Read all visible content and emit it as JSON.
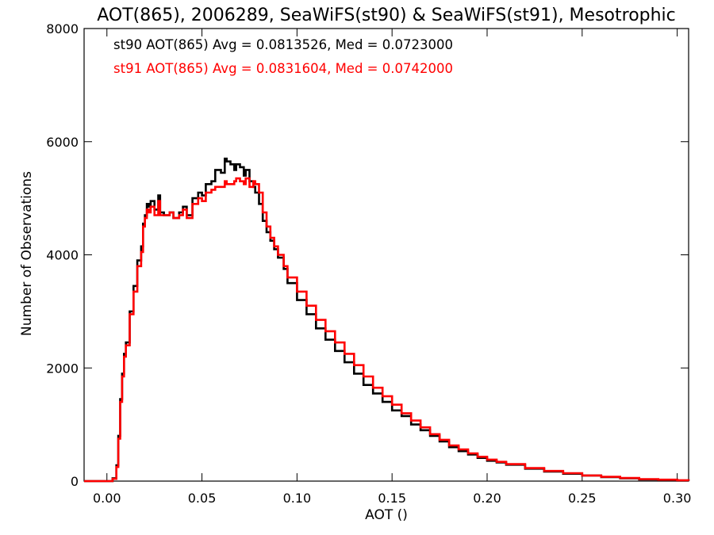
{
  "chart_data": {
    "type": "line",
    "step": true,
    "title": "AOT(865), 2006289, SeaWiFS(st90) & SeaWiFS(st91), Mesotrophic",
    "xlabel": "AOT ()",
    "ylabel": "Number of Observations",
    "xlim": [
      -0.012,
      0.306
    ],
    "ylim": [
      0,
      8000
    ],
    "xticks": [
      0.0,
      0.05,
      0.1,
      0.15,
      0.2,
      0.25,
      0.3
    ],
    "xtick_labels": [
      "0.00",
      "0.05",
      "0.10",
      "0.15",
      "0.20",
      "0.25",
      "0.30"
    ],
    "yticks": [
      0,
      2000,
      4000,
      6000,
      8000
    ],
    "ytick_labels": [
      "0",
      "2000",
      "4000",
      "6000",
      "8000"
    ],
    "grid": false,
    "legend_position": "top-left",
    "series": [
      {
        "name": "st90",
        "color": "#000000",
        "annotation": "st90 AOT(865) Avg = 0.0813526, Med = 0.0723000",
        "x": [
          -0.012,
          0.0,
          0.003,
          0.005,
          0.006,
          0.007,
          0.008,
          0.009,
          0.01,
          0.012,
          0.014,
          0.016,
          0.018,
          0.019,
          0.02,
          0.021,
          0.022,
          0.023,
          0.025,
          0.027,
          0.028,
          0.03,
          0.033,
          0.035,
          0.038,
          0.04,
          0.042,
          0.045,
          0.048,
          0.05,
          0.052,
          0.055,
          0.057,
          0.06,
          0.062,
          0.063,
          0.065,
          0.067,
          0.068,
          0.07,
          0.072,
          0.073,
          0.075,
          0.077,
          0.078,
          0.08,
          0.082,
          0.084,
          0.086,
          0.088,
          0.09,
          0.093,
          0.095,
          0.1,
          0.105,
          0.11,
          0.115,
          0.12,
          0.125,
          0.13,
          0.135,
          0.14,
          0.145,
          0.15,
          0.155,
          0.16,
          0.165,
          0.17,
          0.175,
          0.18,
          0.185,
          0.19,
          0.195,
          0.2,
          0.205,
          0.21,
          0.22,
          0.23,
          0.24,
          0.25,
          0.26,
          0.27,
          0.28,
          0.29,
          0.3,
          0.306
        ],
        "y": [
          0,
          0,
          50,
          280,
          800,
          1450,
          1900,
          2250,
          2450,
          3000,
          3450,
          3900,
          4150,
          4550,
          4700,
          4900,
          4850,
          4950,
          4800,
          5050,
          4750,
          4700,
          4750,
          4650,
          4750,
          4850,
          4700,
          5000,
          5100,
          5050,
          5250,
          5300,
          5500,
          5450,
          5700,
          5650,
          5600,
          5500,
          5600,
          5550,
          5400,
          5500,
          5300,
          5200,
          5100,
          4900,
          4600,
          4400,
          4250,
          4100,
          3950,
          3750,
          3500,
          3200,
          2950,
          2700,
          2500,
          2300,
          2100,
          1900,
          1700,
          1550,
          1400,
          1250,
          1150,
          1000,
          900,
          800,
          700,
          600,
          530,
          470,
          410,
          360,
          330,
          290,
          220,
          170,
          130,
          100,
          70,
          50,
          30,
          20,
          10,
          5
        ]
      },
      {
        "name": "st91",
        "color": "#ff0000",
        "annotation": "st91 AOT(865) Avg = 0.0831604, Med = 0.0742000",
        "x": [
          -0.012,
          0.0,
          0.003,
          0.005,
          0.006,
          0.007,
          0.008,
          0.009,
          0.01,
          0.012,
          0.014,
          0.016,
          0.018,
          0.019,
          0.02,
          0.021,
          0.022,
          0.023,
          0.025,
          0.027,
          0.028,
          0.03,
          0.033,
          0.035,
          0.038,
          0.04,
          0.042,
          0.045,
          0.048,
          0.05,
          0.052,
          0.055,
          0.057,
          0.06,
          0.062,
          0.063,
          0.065,
          0.067,
          0.068,
          0.07,
          0.072,
          0.073,
          0.075,
          0.077,
          0.078,
          0.08,
          0.082,
          0.084,
          0.086,
          0.088,
          0.09,
          0.093,
          0.095,
          0.1,
          0.105,
          0.11,
          0.115,
          0.12,
          0.125,
          0.13,
          0.135,
          0.14,
          0.145,
          0.15,
          0.155,
          0.16,
          0.165,
          0.17,
          0.175,
          0.18,
          0.185,
          0.19,
          0.195,
          0.2,
          0.205,
          0.21,
          0.22,
          0.23,
          0.24,
          0.25,
          0.26,
          0.27,
          0.28,
          0.29,
          0.3,
          0.306
        ],
        "y": [
          0,
          0,
          40,
          250,
          750,
          1400,
          1850,
          2200,
          2400,
          2950,
          3350,
          3800,
          4050,
          4500,
          4650,
          4800,
          4750,
          4850,
          4700,
          4950,
          4700,
          4700,
          4750,
          4650,
          4700,
          4800,
          4650,
          4900,
          5000,
          4950,
          5100,
          5150,
          5200,
          5200,
          5300,
          5250,
          5250,
          5300,
          5350,
          5300,
          5250,
          5350,
          5200,
          5300,
          5250,
          5100,
          4750,
          4500,
          4300,
          4150,
          4000,
          3800,
          3600,
          3350,
          3100,
          2850,
          2650,
          2450,
          2250,
          2050,
          1850,
          1650,
          1500,
          1350,
          1200,
          1070,
          950,
          830,
          730,
          630,
          560,
          490,
          430,
          380,
          340,
          300,
          230,
          180,
          140,
          100,
          75,
          55,
          35,
          25,
          15,
          8
        ]
      }
    ]
  }
}
